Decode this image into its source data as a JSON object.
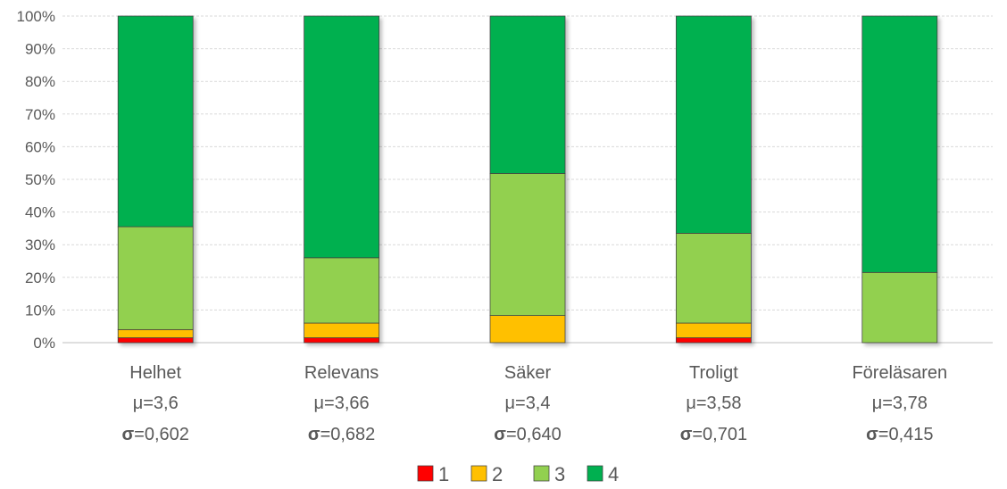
{
  "chart_data": {
    "type": "bar",
    "stacked": true,
    "percent": true,
    "categories": [
      "Helhet",
      "Relevans",
      "Säker",
      "Troligt",
      "Föreläsaren"
    ],
    "mu_labels": [
      "μ=3,6",
      "μ=3,66",
      "μ=3,4",
      "μ=3,58",
      "μ=3,78"
    ],
    "sigma_symbol": "σ",
    "sigma_values": [
      "=0,602",
      "=0,682",
      "=0,640",
      "=0,701",
      "=0,415"
    ],
    "series": [
      {
        "name": "1",
        "color": "#ff0000",
        "values": [
          1.5,
          1.5,
          0,
          1.5,
          0
        ]
      },
      {
        "name": "2",
        "color": "#ffc000",
        "values": [
          2.5,
          4.5,
          8.3,
          4.5,
          0
        ]
      },
      {
        "name": "3",
        "color": "#92d050",
        "values": [
          31.5,
          20,
          43.5,
          27.5,
          21.5
        ]
      },
      {
        "name": "4",
        "color": "#00b050",
        "values": [
          64.5,
          74,
          48.2,
          66.5,
          78.5
        ]
      }
    ],
    "ylim": [
      0,
      100
    ],
    "yticks": [
      "0%",
      "10%",
      "20%",
      "30%",
      "40%",
      "50%",
      "60%",
      "70%",
      "80%",
      "90%",
      "100%"
    ],
    "grid": true,
    "legend": "bottom"
  }
}
